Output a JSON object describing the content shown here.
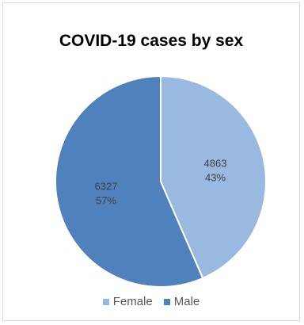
{
  "chart_data": {
    "type": "pie",
    "title": "COVID-19 cases by sex",
    "categories": [
      "Female",
      "Male"
    ],
    "values": [
      4863,
      6327
    ],
    "percent_labels": [
      "43%",
      "57%"
    ],
    "value_labels": [
      "4863",
      "6327"
    ],
    "colors": [
      "#9ab9e0",
      "#4f81bd"
    ],
    "start_angle_deg": 0,
    "direction": "clockwise",
    "legend": "bottom"
  }
}
